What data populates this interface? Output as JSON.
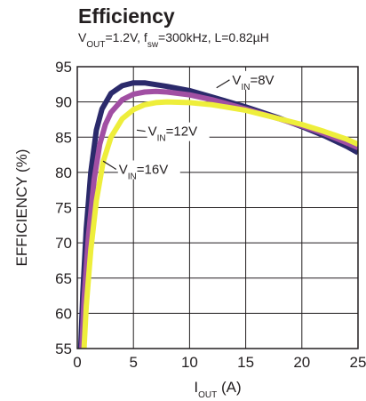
{
  "chart_data": {
    "type": "line",
    "title": "Efficiency",
    "subtitle": {
      "parts": [
        {
          "text": "V",
          "sub": false
        },
        {
          "text": "OUT",
          "sub": true
        },
        {
          "text": "=1.2V, f",
          "sub": false
        },
        {
          "text": "sw",
          "sub": true
        },
        {
          "text": "=300kHz, L=0.82µH",
          "sub": false
        }
      ]
    },
    "xlabel": {
      "main": "I",
      "sub": "OUT",
      "tail": " (A)"
    },
    "ylabel": "EFFICIENCY (%)",
    "xlim": [
      0,
      25
    ],
    "ylim": [
      55,
      95
    ],
    "x_ticks": [
      0,
      5,
      10,
      15,
      20,
      25
    ],
    "y_ticks": [
      55,
      60,
      65,
      70,
      75,
      80,
      85,
      90,
      95
    ],
    "grid": true,
    "series": [
      {
        "name": "VIN=8V",
        "label": {
          "main": "V",
          "sub": "IN",
          "tail": "=8V"
        },
        "color": "#2b2a6b",
        "x": [
          0.3,
          0.5,
          0.8,
          1.2,
          1.7,
          2.2,
          3,
          4,
          5,
          6,
          8,
          10,
          12,
          15,
          18,
          20,
          22,
          24,
          25
        ],
        "y": [
          55,
          63,
          72,
          80,
          86,
          89,
          91.2,
          92.3,
          92.7,
          92.7,
          92.2,
          91.6,
          90.7,
          89.3,
          87.7,
          86.5,
          85.2,
          83.7,
          82.8
        ]
      },
      {
        "name": "VIN=12V",
        "label": {
          "main": "V",
          "sub": "IN",
          "tail": "=12V"
        },
        "color": "#a14fa3",
        "x": [
          0.4,
          0.6,
          1,
          1.5,
          2,
          2.5,
          3,
          4,
          5,
          6,
          7,
          8,
          10,
          12,
          15,
          18,
          20,
          22,
          24,
          25
        ],
        "y": [
          55,
          62,
          71,
          79,
          84,
          86.8,
          88.5,
          90.3,
          91.1,
          91.4,
          91.5,
          91.4,
          91,
          90.3,
          89,
          87.6,
          86.6,
          85.5,
          84.2,
          83.5
        ]
      },
      {
        "name": "VIN=16V",
        "label": {
          "main": "V",
          "sub": "IN",
          "tail": "=16V"
        },
        "color": "#eeee3b",
        "x": [
          0.6,
          0.8,
          1.2,
          1.7,
          2.3,
          3,
          4,
          5,
          6,
          7,
          8,
          10,
          12,
          15,
          18,
          20,
          22,
          24,
          25
        ],
        "y": [
          55,
          61,
          69,
          76,
          81.5,
          85,
          87.6,
          88.9,
          89.6,
          89.9,
          90,
          89.9,
          89.6,
          88.8,
          87.6,
          86.8,
          85.8,
          84.7,
          84
        ]
      }
    ],
    "annotations": [
      {
        "series": "VIN=8V",
        "at_x": 12.4,
        "at_y": 92,
        "text_x": 13.8,
        "text_y": 92.5
      },
      {
        "series": "VIN=12V",
        "at_x": 5.3,
        "at_y": 86,
        "text_x": 6.3,
        "text_y": 85.2
      },
      {
        "series": "VIN=16V",
        "at_x": 2.3,
        "at_y": 81.6,
        "text_x": 3.7,
        "text_y": 79.8
      }
    ]
  }
}
